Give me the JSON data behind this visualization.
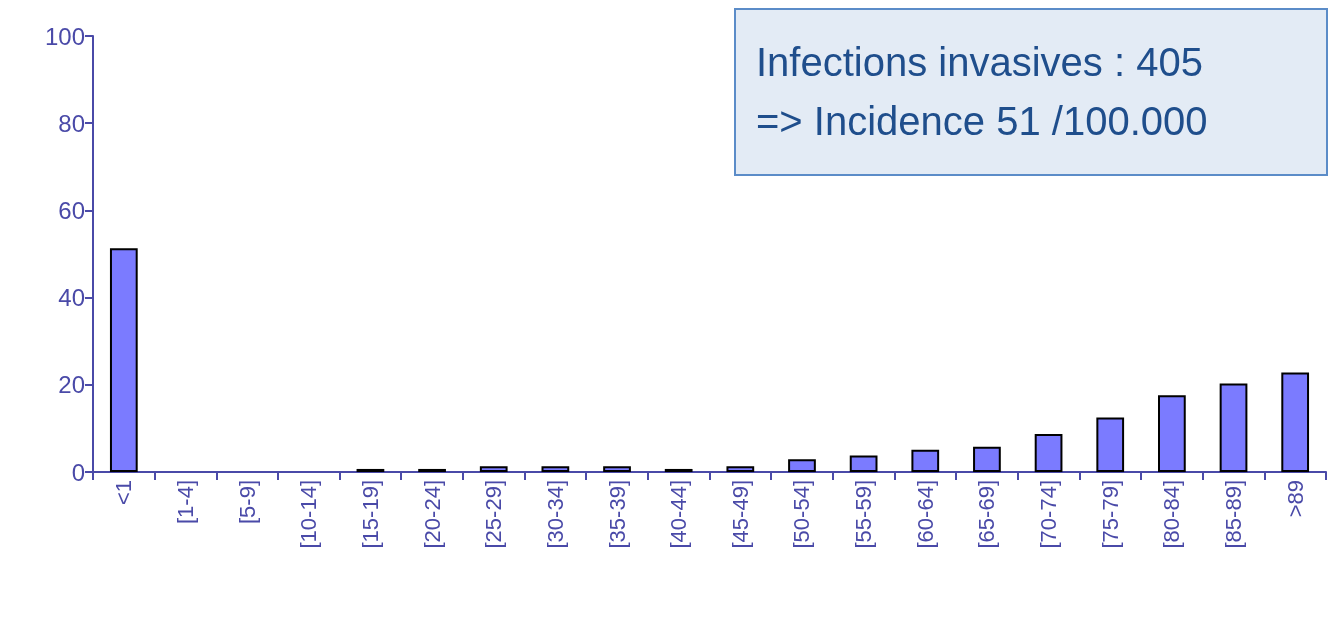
{
  "chart_data": {
    "type": "bar",
    "categories": [
      "<1",
      "[1-4]",
      "[5-9]",
      "[10-14]",
      "[15-19]",
      "[20-24]",
      "[25-29]",
      "[30-34]",
      "[35-39]",
      "[40-44]",
      "[45-49]",
      "[50-54]",
      "[55-59]",
      "[60-64]",
      "[65-69]",
      "[70-74]",
      "[75-79]",
      "[80-84]",
      "[85-89]",
      ">89"
    ],
    "values": [
      51.3,
      0,
      0,
      0,
      0.7,
      0.7,
      1.3,
      1.3,
      1.3,
      0.7,
      1.3,
      2.9,
      3.8,
      5.1,
      5.8,
      8.7,
      12.5,
      17.6,
      20.3,
      22.8
    ],
    "color": "#7b7bff",
    "ylim": [
      0,
      100
    ],
    "yticks": [
      0,
      20,
      40,
      60,
      80,
      100
    ],
    "grid": false,
    "annotations": [
      "Infections invasives : 405",
      "=> Incidence 51 /100.000"
    ]
  }
}
